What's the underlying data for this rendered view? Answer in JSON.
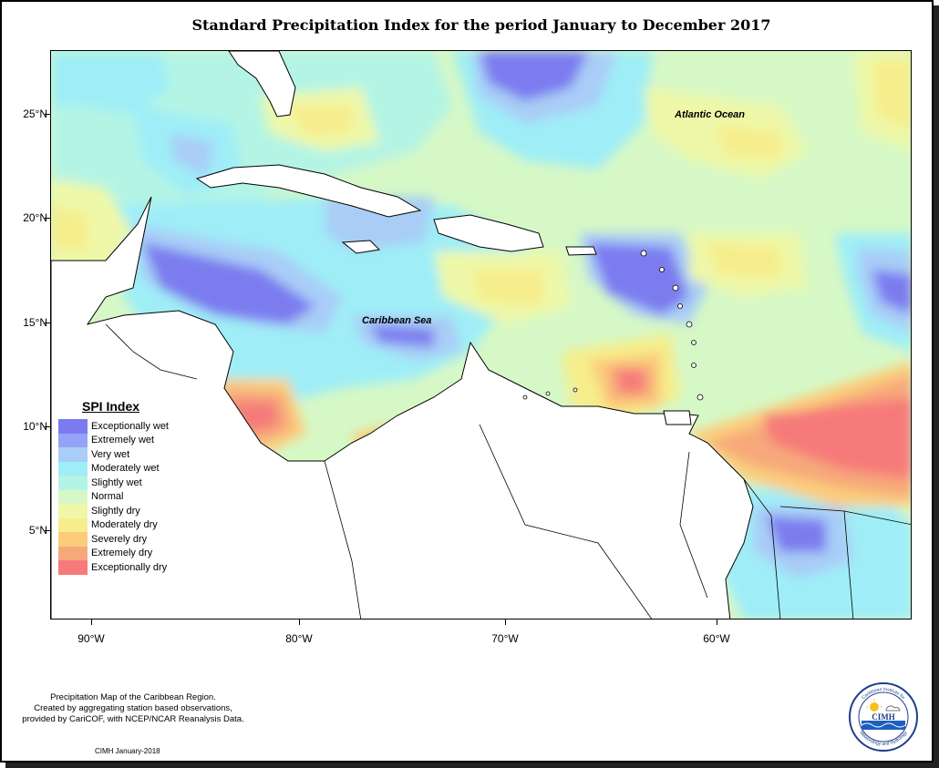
{
  "title": "Standard Precipitation Index for the period January to December 2017",
  "map": {
    "labels": {
      "atlantic": "Atlantic Ocean",
      "caribbean": "Caribbean Sea"
    },
    "lat_ticks": [
      "25°N",
      "20°N",
      "15°N",
      "10°N",
      "5°N"
    ],
    "lon_ticks": [
      "90°W",
      "80°W",
      "70°W",
      "60°W"
    ],
    "extent": {
      "lon_min": -92,
      "lon_max": -50,
      "lat_min": 1,
      "lat_max": 28.5
    }
  },
  "legend": {
    "title": "SPI Index",
    "items": [
      {
        "label": "Exceptionally wet",
        "color": "#7b7bef"
      },
      {
        "label": "Extremely wet",
        "color": "#94a3f5"
      },
      {
        "label": "Very wet",
        "color": "#a9cdf7"
      },
      {
        "label": "Moderately wet",
        "color": "#9feef7"
      },
      {
        "label": "Slightly wet",
        "color": "#b4f4e4"
      },
      {
        "label": "Normal",
        "color": "#d6f8c6"
      },
      {
        "label": "Slightly dry",
        "color": "#eef8a8"
      },
      {
        "label": "Moderately dry",
        "color": "#f6ee8c"
      },
      {
        "label": "Severely dry",
        "color": "#fbcd7b"
      },
      {
        "label": "Extremely dry",
        "color": "#f7a87a"
      },
      {
        "label": "Exceptionally dry",
        "color": "#f67a7a"
      }
    ]
  },
  "footer": {
    "line1": "Precipitation Map of the Caribbean Region.",
    "line2": "Created by aggregating station based observations,",
    "line3": "provided by CariCOF, with NCEP/NCAR Reanalysis Data.",
    "credit": "CIMH January-2018"
  },
  "logo": {
    "abbr": "CIMH",
    "ring_top": "Caribbean Institute for",
    "ring_bottom": "Meteorology and Hydrology"
  }
}
